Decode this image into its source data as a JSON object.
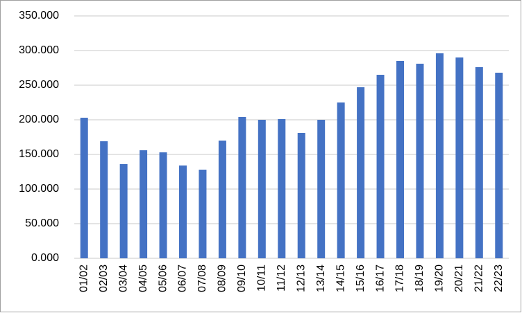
{
  "chart_data": {
    "type": "bar",
    "categories": [
      "01/02",
      "02/03",
      "03/04",
      "04/05",
      "05/06",
      "06/07",
      "07/08",
      "08/09",
      "09/10",
      "10/11",
      "11/12",
      "12/13",
      "13/14",
      "14/15",
      "15/16",
      "16/17",
      "17/18",
      "18/19",
      "19/20",
      "20/21",
      "21/22",
      "22/23"
    ],
    "values": [
      203000,
      169000,
      136000,
      156000,
      153000,
      134000,
      128000,
      170000,
      204000,
      200000,
      201000,
      181000,
      200000,
      225000,
      247000,
      265000,
      285000,
      281000,
      296000,
      290000,
      276000,
      268000
    ],
    "color": "#4472c4",
    "ylim": [
      0,
      350000
    ],
    "yticks": [
      {
        "value": 0,
        "label": "0.000"
      },
      {
        "value": 50000,
        "label": "50.000"
      },
      {
        "value": 100000,
        "label": "100.000"
      },
      {
        "value": 150000,
        "label": "150.000"
      },
      {
        "value": 200000,
        "label": "200.000"
      },
      {
        "value": 250000,
        "label": "250.000"
      },
      {
        "value": 300000,
        "label": "300.000"
      },
      {
        "value": 350000,
        "label": "350.000"
      }
    ],
    "grid": true
  }
}
